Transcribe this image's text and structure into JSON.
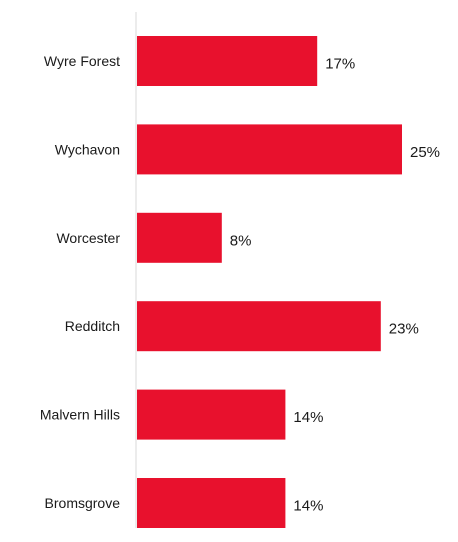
{
  "chart_data": {
    "type": "bar",
    "orientation": "horizontal",
    "categories": [
      "Wyre Forest",
      "Wychavon",
      "Worcester",
      "Redditch",
      "Malvern Hills",
      "Bromsgrove"
    ],
    "values": [
      17,
      25,
      8,
      23,
      14,
      14
    ],
    "value_labels": [
      "17%",
      "25%",
      "8%",
      "23%",
      "14%",
      "14%"
    ],
    "unit": "%",
    "xlim": [
      0,
      30
    ],
    "grid": false,
    "legend": "none",
    "bar_color": "#e8112d",
    "axis_color": "#d9d9d9"
  }
}
